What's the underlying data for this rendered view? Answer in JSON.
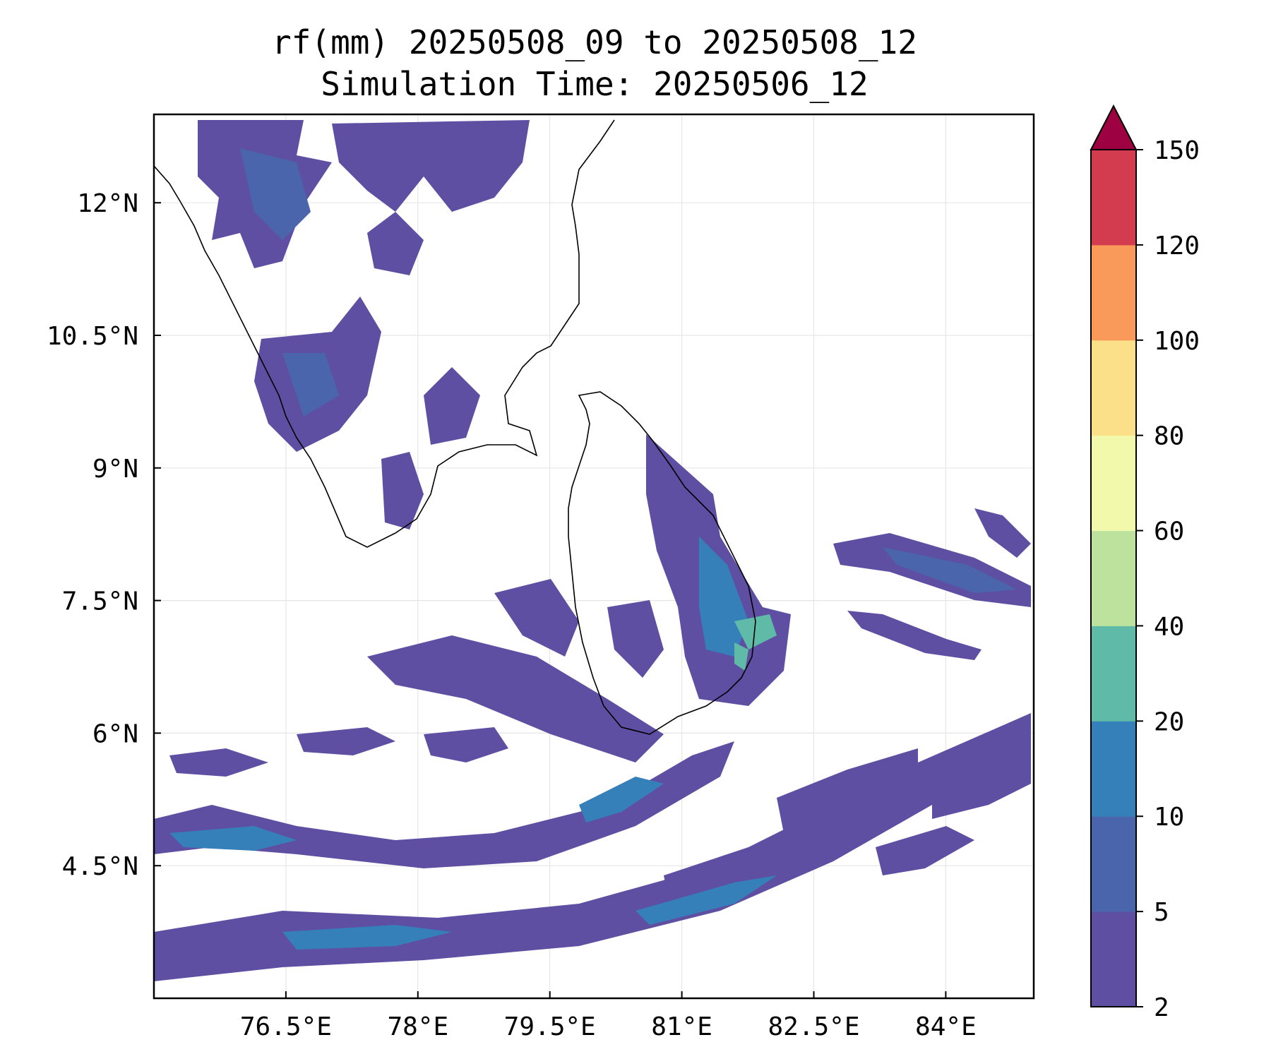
{
  "title": {
    "line1": "rf(mm) 20250508_09 to 20250508_12",
    "line2": "Simulation Time: 20250506_12"
  },
  "map": {
    "lon_range": [
      75.0,
      85.0
    ],
    "lat_range": [
      3.0,
      13.0
    ],
    "x_ticks": [
      {
        "value": 76.5,
        "label": "76.5°E"
      },
      {
        "value": 78.0,
        "label": "78°E"
      },
      {
        "value": 79.5,
        "label": "79.5°E"
      },
      {
        "value": 81.0,
        "label": "81°E"
      },
      {
        "value": 82.5,
        "label": "82.5°E"
      },
      {
        "value": 84.0,
        "label": "84°E"
      }
    ],
    "y_ticks": [
      {
        "value": 12.0,
        "label": "12°N"
      },
      {
        "value": 10.5,
        "label": "10.5°N"
      },
      {
        "value": 9.0,
        "label": "9°N"
      },
      {
        "value": 7.5,
        "label": "7.5°N"
      },
      {
        "value": 6.0,
        "label": "6°N"
      },
      {
        "value": 4.5,
        "label": "4.5°N"
      }
    ],
    "gridlines": true,
    "coastline_color": "#000000",
    "field": "rainfall contour fill (mm)"
  },
  "colorbar": {
    "placement": "right",
    "extend": "max",
    "levels": [
      {
        "label": "2",
        "value": 2,
        "color": "#5e4fa2"
      },
      {
        "label": "5",
        "value": 5,
        "color": "#4a65ab"
      },
      {
        "label": "10",
        "value": 10,
        "color": "#3680b9"
      },
      {
        "label": "20",
        "value": 20,
        "color": "#5fbaa8"
      },
      {
        "label": "40",
        "value": 40,
        "color": "#bde29d"
      },
      {
        "label": "60",
        "value": 60,
        "color": "#f2f9ab"
      },
      {
        "label": "80",
        "value": 80,
        "color": "#fbdf89"
      },
      {
        "label": "100",
        "value": 100,
        "color": "#f99a5a"
      },
      {
        "label": "120",
        "value": 120,
        "color": "#d33c4e"
      },
      {
        "label": "150",
        "value": 150,
        "color": "#9e0142"
      }
    ]
  }
}
